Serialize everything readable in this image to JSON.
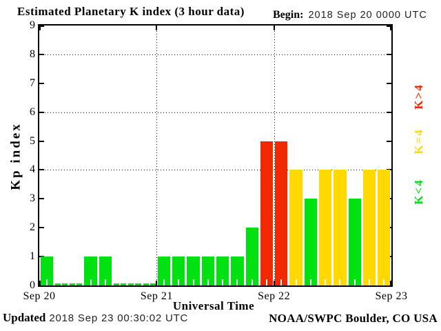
{
  "title": "Estimated Planetary K index (3 hour data)",
  "begin": {
    "label": "Begin:",
    "value": "2018 Sep 20 0000 UTC"
  },
  "footer": {
    "updated_label": "Updated",
    "updated_value": "2018 Sep 23 00:30:02 UTC",
    "source": "NOAA/SWPC Boulder, CO USA"
  },
  "colors": {
    "green": "#00e112",
    "yellow": "#ffd900",
    "red": "#f22800"
  },
  "legend": [
    {
      "label": "K>4",
      "color_key": "red"
    },
    {
      "label": "K=4",
      "color_key": "yellow"
    },
    {
      "label": "K<4",
      "color_key": "green"
    }
  ],
  "chart_data": {
    "type": "bar",
    "title": "Estimated Planetary K index (3 hour data)",
    "xlabel": "Universal Time",
    "ylabel": "Kp index",
    "begin": "2018 Sep 20 0000 UTC",
    "hours_per_bar": 3,
    "ylim": [
      0,
      9
    ],
    "yticks": [
      0,
      1,
      2,
      3,
      4,
      5,
      6,
      7,
      8,
      9
    ],
    "grid_y": [
      4,
      6,
      8
    ],
    "grid": "dotted",
    "x_tick_labels": [
      "Sep 20",
      "Sep 21",
      "Sep 22",
      "Sep 23"
    ],
    "days": [
      {
        "date": "Sep 20",
        "values": [
          1,
          0,
          0,
          1,
          1,
          0,
          0,
          0
        ]
      },
      {
        "date": "Sep 21",
        "values": [
          1,
          1,
          1,
          1,
          1,
          1,
          2,
          5
        ]
      },
      {
        "date": "Sep 22",
        "values": [
          5,
          4,
          3,
          4,
          4,
          3,
          4,
          4
        ]
      }
    ],
    "values_flat": [
      1,
      0,
      0,
      1,
      1,
      0,
      0,
      0,
      1,
      1,
      1,
      1,
      1,
      1,
      2,
      5,
      5,
      4,
      3,
      4,
      4,
      3,
      4,
      4
    ],
    "color_rule": {
      "green": "K<4",
      "yellow": "K=4",
      "red": "K>4"
    },
    "legend_position": "right-rotated"
  }
}
